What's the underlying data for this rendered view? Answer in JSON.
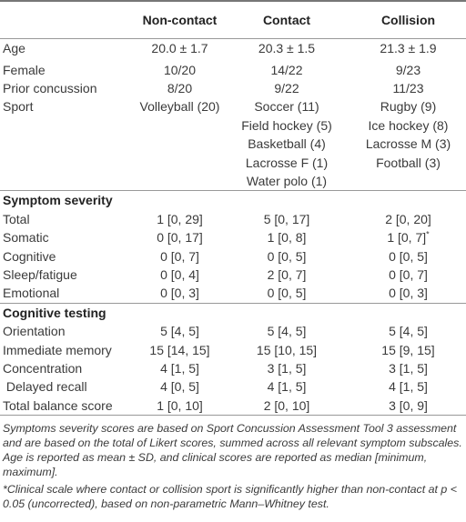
{
  "table": {
    "columns": [
      "Non-contact",
      "Contact",
      "Collision"
    ],
    "groups": [
      {
        "rows": [
          {
            "label": "Age",
            "cells": [
              "20.0 ± 1.7",
              "20.3 ± 1.5",
              "21.3 ± 1.9"
            ]
          },
          {
            "label": "Female",
            "cells": [
              "10/20",
              "14/22",
              "9/23"
            ]
          },
          {
            "label": "Prior concussion",
            "cells": [
              "8/20",
              "9/22",
              "11/23"
            ]
          },
          {
            "label": "Sport",
            "cells": [
              [
                "Volleyball (20)"
              ],
              [
                "Soccer (11)",
                "Field hockey (5)",
                "Basketball (4)",
                "Lacrosse F (1)",
                "Water polo (1)"
              ],
              [
                "Rugby (9)",
                "Ice hockey (8)",
                "Lacrosse M (3)",
                "Football (3)"
              ]
            ]
          }
        ]
      },
      {
        "title": "Symptom severity",
        "rows": [
          {
            "label": "Total",
            "cells": [
              "1 [0, 29]",
              "5 [0, 17]",
              "2 [0, 20]"
            ]
          },
          {
            "label": "Somatic",
            "cells": [
              "0 [0, 17]",
              "1 [0, 8]",
              {
                "text": "1 [0, 7]",
                "mark": "*"
              }
            ]
          },
          {
            "label": "Cognitive",
            "cells": [
              "0 [0, 7]",
              "0 [0, 5]",
              "0 [0, 5]"
            ]
          },
          {
            "label": "Sleep/fatigue",
            "cells": [
              "0 [0, 4]",
              "2 [0, 7]",
              "0 [0, 7]"
            ]
          },
          {
            "label": "Emotional",
            "cells": [
              "0 [0, 3]",
              "0 [0, 5]",
              "0 [0, 3]"
            ]
          }
        ]
      },
      {
        "title": "Cognitive testing",
        "rows": [
          {
            "label": "Orientation",
            "cells": [
              "5 [4, 5]",
              "5 [4, 5]",
              "5 [4, 5]"
            ]
          },
          {
            "label": "Immediate memory",
            "cells": [
              "15 [14, 15]",
              "15 [10, 15]",
              "15 [9, 15]"
            ]
          },
          {
            "label": "Concentration",
            "cells": [
              "4 [1, 5]",
              "3 [1, 5]",
              "3 [1, 5]"
            ]
          },
          {
            "label": " Delayed recall",
            "cells": [
              "4 [0, 5]",
              "4 [1, 5]",
              "4 [1, 5]"
            ]
          },
          {
            "label": "Total balance score",
            "cells": [
              "1 [0, 10]",
              "2 [0, 10]",
              "3 [0, 9]"
            ]
          }
        ]
      }
    ],
    "notes": [
      "Symptoms severity scores are based on Sport Concussion Assessment Tool 3 assessment and are based on the total of Likert scores, summed across all relevant symptom subscales. Age is reported as mean ± SD, and clinical scores are reported as median [minimum, maximum].",
      "*Clinical scale where contact or collision sport is significantly higher than non-contact at p < 0.05 (uncorrected), based on non-parametric Mann–Whitney test."
    ]
  }
}
